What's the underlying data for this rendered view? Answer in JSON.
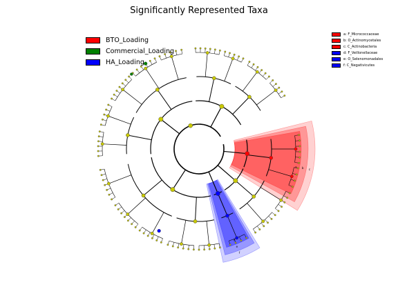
{
  "title": "Significantly Represented Taxa",
  "legend": [
    {
      "label": "BTO_Loading",
      "color": "#ff0000"
    },
    {
      "label": "Commercial_Loading",
      "color": "#008000"
    },
    {
      "label": "HA_Loading",
      "color": "#0000ff"
    }
  ],
  "taxa_key": [
    {
      "label": "a: F_Micrococcaceae",
      "color": "#ff0000"
    },
    {
      "label": "b: O_Actinomycetales",
      "color": "#ff0000"
    },
    {
      "label": "c: C_Actinobacteria",
      "color": "#ff0000"
    },
    {
      "label": "d: F_Veillonellaceae",
      "color": "#0000ff"
    },
    {
      "label": "e: O_Selenomonadales",
      "color": "#0000ff"
    },
    {
      "label": "f: C_Negativicutes",
      "color": "#0000ff"
    }
  ],
  "highlights": [
    {
      "labels": [
        "a",
        "b",
        "c"
      ],
      "color": "#ff0000",
      "start_deg": -8,
      "end_deg": 22
    },
    {
      "labels": [
        "d",
        "e",
        "f"
      ],
      "color": "#0000ff",
      "start_deg": 62,
      "end_deg": 72
    }
  ],
  "node_colors": {
    "default": "#c8c800",
    "bto": "#ff0000",
    "commercial": "#008000",
    "ha": "#0000ff"
  }
}
